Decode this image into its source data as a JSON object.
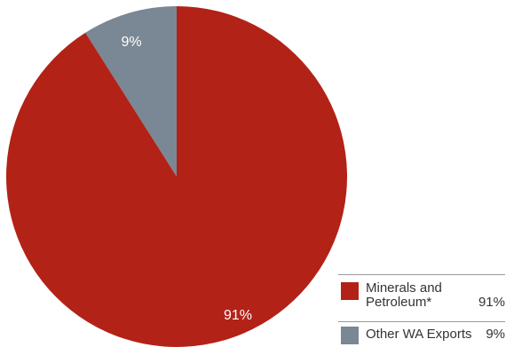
{
  "chart_data": {
    "type": "pie",
    "title": "",
    "categories": [
      "Minerals and Petroleum*",
      "Other WA Exports"
    ],
    "values": [
      91,
      9
    ],
    "slice_labels": [
      "91%",
      "9%"
    ],
    "colors": [
      "#b22217",
      "#7a8794"
    ],
    "legend_placement": "bottom-right",
    "legend": [
      {
        "label_line1": "Minerals and",
        "label_line2": "Petroleum*",
        "value": "91%"
      },
      {
        "label_line1": "Other WA Exports",
        "label_line2": "",
        "value": "9%"
      }
    ]
  }
}
